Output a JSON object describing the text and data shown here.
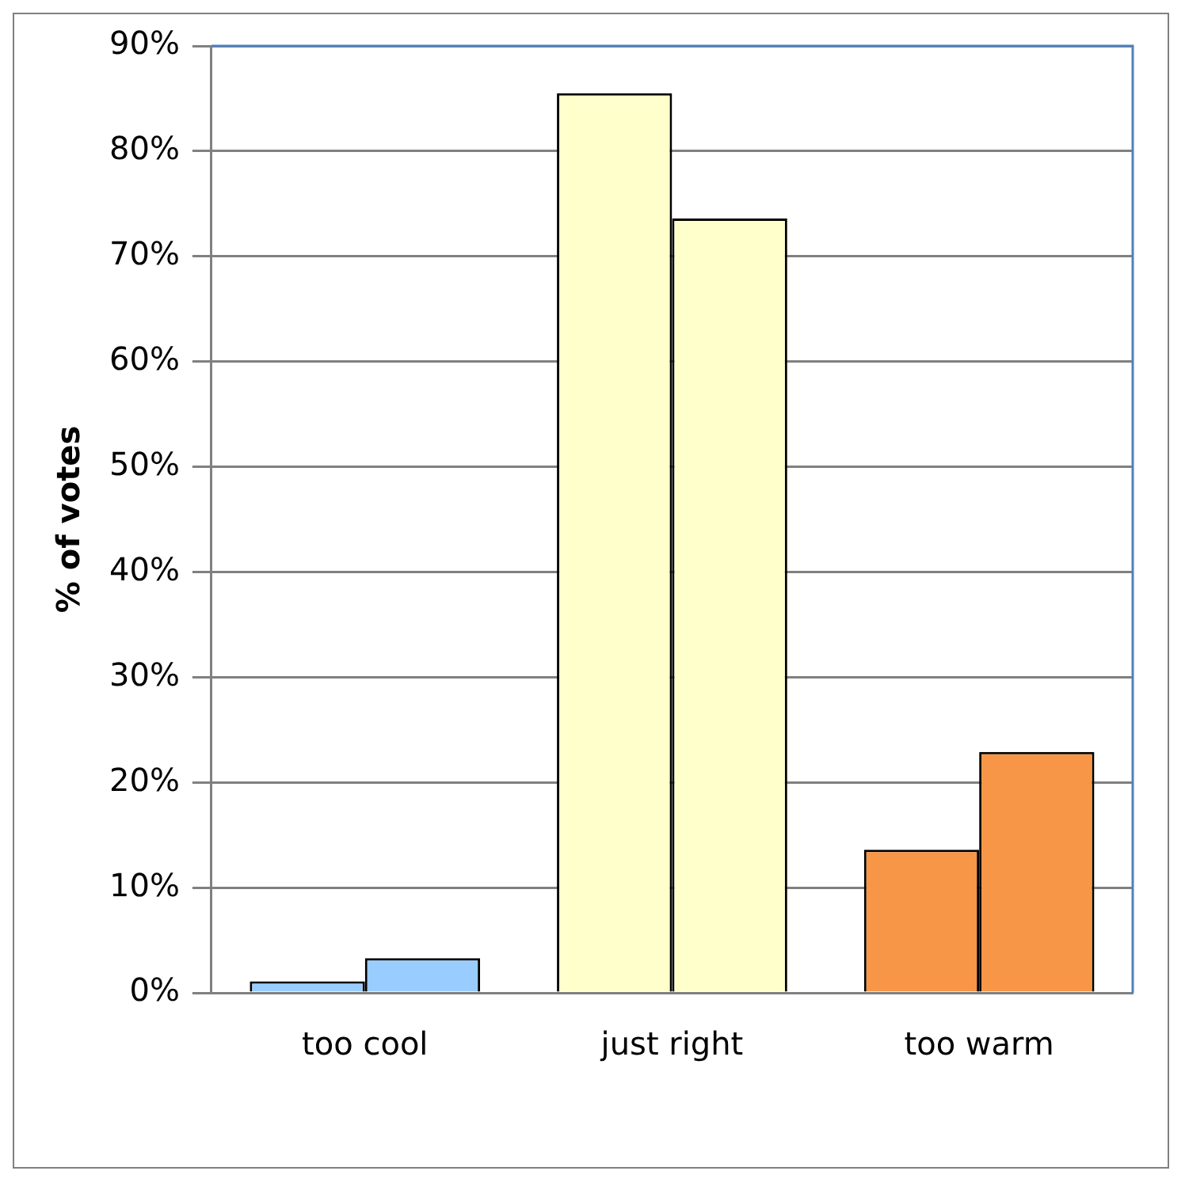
{
  "chart_data": {
    "type": "bar",
    "ylabel": "% of votes",
    "categories": [
      "too cool",
      "just right",
      "too warm"
    ],
    "series": [
      {
        "colors": [
          "#99ccff",
          "#ffffcc",
          "#f79646"
        ],
        "values": [
          1.1,
          85.5,
          13.6
        ]
      },
      {
        "colors": [
          "#99ccff",
          "#ffffcc",
          "#f79646"
        ],
        "values": [
          3.3,
          73.6,
          22.9
        ]
      }
    ],
    "ylim": [
      0,
      90
    ],
    "yticks": [
      {
        "value": 0,
        "label": "0%"
      },
      {
        "value": 10,
        "label": "10%"
      },
      {
        "value": 20,
        "label": "20%"
      },
      {
        "value": 30,
        "label": "30%"
      },
      {
        "value": 40,
        "label": "40%"
      },
      {
        "value": 50,
        "label": "50%"
      },
      {
        "value": 60,
        "label": "60%"
      },
      {
        "value": 70,
        "label": "70%"
      },
      {
        "value": 80,
        "label": "80%"
      },
      {
        "value": 90,
        "label": "90%"
      }
    ],
    "grid": "y",
    "legend": false
  }
}
